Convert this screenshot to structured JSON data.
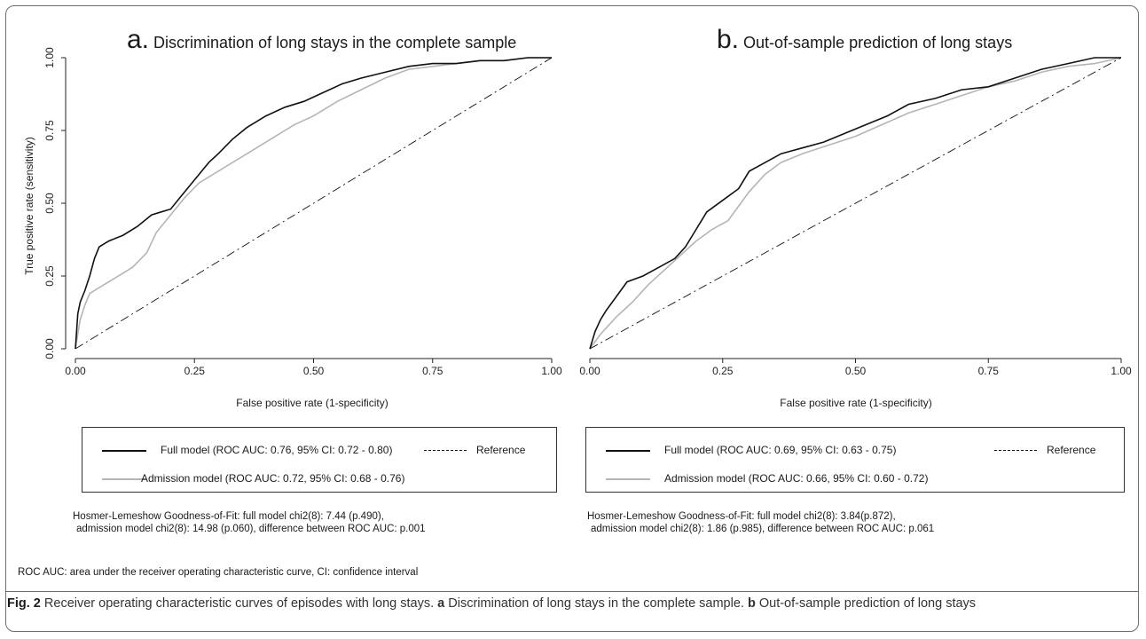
{
  "panels": [
    {
      "letter": "a.",
      "title_text": "Discrimination of long stays in the complete sample",
      "ylabel": "True positive rate (sensitivity)",
      "xlabel": "False positive rate (1-specificity)",
      "legend": {
        "full": "Full model (ROC AUC: 0.76, 95% CI: 0.72 - 0.80)",
        "reference": "Reference",
        "admission": "Admission model (ROC AUC: 0.72, 95% CI: 0.68 - 0.76)"
      },
      "note_line1": "Hosmer-Lemeshow Goodness-of-Fit: full model chi2(8): 7.44 (p.490),",
      "note_line2": "admission model chi2(8): 14.98 (p.060), difference between ROC AUC: p.001"
    },
    {
      "letter": "b.",
      "title_text": "Out-of-sample prediction of long stays",
      "xlabel": "False positive rate (1-specificity)",
      "legend": {
        "full": "Full model (ROC AUC: 0.69, 95% CI: 0.63 - 0.75)",
        "reference": "Reference",
        "admission": "Admission model (ROC AUC: 0.66, 95% CI: 0.60 - 0.72)"
      },
      "note_line1": "Hosmer-Lemeshow Goodness-of-Fit: full model chi2(8): 3.84(p.872),",
      "note_line2": "admission model chi2(8): 1.86 (p.985), difference between ROC AUC: p.061"
    }
  ],
  "abbrev_note": "ROC AUC: area under the receiver operating characteristic curve, CI: confidence interval",
  "caption": {
    "fig_label": "Fig. 2",
    "text": " Receiver operating characteristic curves of episodes with long stays. ",
    "a_label": "a",
    "a_text": " Discrimination of long stays in the complete sample. ",
    "b_label": "b",
    "b_text": " Out-of-sample prediction of long stays"
  },
  "colors": {
    "full_model": "#111111",
    "admission_model": "#b5b5b5",
    "reference": "#111111"
  },
  "chart_data": [
    {
      "type": "line",
      "title": "Discrimination of long stays in the complete sample",
      "xlabel": "False positive rate (1-specificity)",
      "ylabel": "True positive rate (sensitivity)",
      "xlim": [
        0,
        1
      ],
      "ylim": [
        0,
        1
      ],
      "xticks": [
        "0.00",
        "0.25",
        "0.50",
        "0.75",
        "1.00"
      ],
      "yticks": [
        "0.00",
        "0.25",
        "0.50",
        "0.75",
        "1.00"
      ],
      "grid": false,
      "series": [
        {
          "name": "Full model (ROC AUC: 0.76, 95% CI: 0.72 - 0.80)",
          "style": "solid-black",
          "x": [
            0,
            0.005,
            0.01,
            0.02,
            0.03,
            0.04,
            0.05,
            0.07,
            0.1,
            0.13,
            0.16,
            0.18,
            0.2,
            0.22,
            0.24,
            0.26,
            0.28,
            0.3,
            0.33,
            0.36,
            0.4,
            0.44,
            0.48,
            0.52,
            0.56,
            0.6,
            0.65,
            0.7,
            0.75,
            0.8,
            0.85,
            0.9,
            0.95,
            1
          ],
          "y": [
            0,
            0.12,
            0.16,
            0.2,
            0.25,
            0.31,
            0.35,
            0.37,
            0.39,
            0.42,
            0.46,
            0.47,
            0.48,
            0.52,
            0.56,
            0.6,
            0.64,
            0.67,
            0.72,
            0.76,
            0.8,
            0.83,
            0.85,
            0.88,
            0.91,
            0.93,
            0.95,
            0.97,
            0.98,
            0.98,
            0.99,
            0.99,
            1,
            1
          ]
        },
        {
          "name": "Admission model (ROC AUC: 0.72, 95% CI: 0.68 - 0.76)",
          "style": "solid-gray",
          "x": [
            0,
            0.01,
            0.02,
            0.03,
            0.05,
            0.08,
            0.12,
            0.15,
            0.17,
            0.2,
            0.23,
            0.26,
            0.3,
            0.34,
            0.38,
            0.42,
            0.46,
            0.5,
            0.55,
            0.6,
            0.65,
            0.7,
            0.75,
            0.8,
            0.85,
            0.9,
            0.95,
            1
          ],
          "y": [
            0,
            0.1,
            0.15,
            0.19,
            0.21,
            0.24,
            0.28,
            0.33,
            0.4,
            0.46,
            0.52,
            0.57,
            0.61,
            0.65,
            0.69,
            0.73,
            0.77,
            0.8,
            0.85,
            0.89,
            0.93,
            0.96,
            0.97,
            0.98,
            0.99,
            0.99,
            1,
            1
          ]
        },
        {
          "name": "Reference",
          "style": "dash-dot",
          "x": [
            0,
            1
          ],
          "y": [
            0,
            1
          ]
        }
      ]
    },
    {
      "type": "line",
      "title": "Out-of-sample prediction of long stays",
      "xlabel": "False positive rate (1-specificity)",
      "ylabel": "",
      "xlim": [
        0,
        1
      ],
      "ylim": [
        0,
        1
      ],
      "xticks": [
        "0.00",
        "0.25",
        "0.50",
        "0.75",
        "1.00"
      ],
      "yticks": [],
      "grid": false,
      "series": [
        {
          "name": "Full model (ROC AUC: 0.69, 95% CI: 0.63 - 0.75)",
          "style": "solid-black",
          "x": [
            0,
            0.01,
            0.02,
            0.03,
            0.05,
            0.07,
            0.1,
            0.13,
            0.16,
            0.18,
            0.2,
            0.22,
            0.25,
            0.28,
            0.3,
            0.33,
            0.36,
            0.4,
            0.44,
            0.48,
            0.52,
            0.56,
            0.6,
            0.65,
            0.7,
            0.75,
            0.8,
            0.85,
            0.9,
            0.95,
            1
          ],
          "y": [
            0,
            0.06,
            0.1,
            0.13,
            0.18,
            0.23,
            0.25,
            0.28,
            0.31,
            0.35,
            0.41,
            0.47,
            0.51,
            0.55,
            0.61,
            0.64,
            0.67,
            0.69,
            0.71,
            0.74,
            0.77,
            0.8,
            0.84,
            0.86,
            0.89,
            0.9,
            0.93,
            0.96,
            0.98,
            1,
            1
          ]
        },
        {
          "name": "Admission model (ROC AUC: 0.66, 95% CI: 0.60 - 0.72)",
          "style": "solid-gray",
          "x": [
            0,
            0.02,
            0.05,
            0.08,
            0.11,
            0.14,
            0.17,
            0.2,
            0.23,
            0.26,
            0.3,
            0.33,
            0.36,
            0.4,
            0.45,
            0.5,
            0.55,
            0.6,
            0.65,
            0.7,
            0.75,
            0.8,
            0.85,
            0.9,
            0.95,
            1
          ],
          "y": [
            0,
            0.05,
            0.11,
            0.16,
            0.22,
            0.27,
            0.32,
            0.37,
            0.41,
            0.44,
            0.54,
            0.6,
            0.64,
            0.67,
            0.7,
            0.73,
            0.77,
            0.81,
            0.84,
            0.87,
            0.9,
            0.92,
            0.95,
            0.97,
            0.98,
            1
          ]
        },
        {
          "name": "Reference",
          "style": "dash-dot",
          "x": [
            0,
            1
          ],
          "y": [
            0,
            1
          ]
        }
      ]
    }
  ]
}
